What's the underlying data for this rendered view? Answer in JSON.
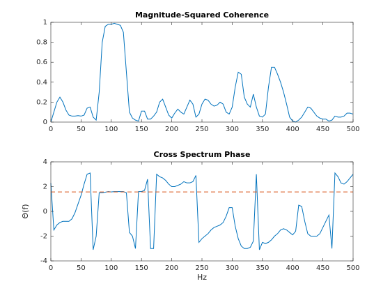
{
  "chart_data": [
    {
      "type": "line",
      "title": "Magnitude-Squared Coherence",
      "x": [
        0,
        5,
        10,
        15,
        20,
        25,
        30,
        35,
        40,
        45,
        50,
        55,
        60,
        65,
        70,
        75,
        80,
        85,
        90,
        95,
        100,
        105,
        110,
        115,
        120,
        125,
        130,
        135,
        140,
        145,
        150,
        155,
        160,
        165,
        170,
        175,
        180,
        185,
        190,
        195,
        200,
        205,
        210,
        215,
        220,
        225,
        230,
        235,
        240,
        245,
        250,
        255,
        260,
        265,
        270,
        275,
        280,
        285,
        290,
        295,
        300,
        305,
        310,
        315,
        320,
        325,
        330,
        335,
        340,
        345,
        350,
        355,
        360,
        365,
        370,
        375,
        380,
        385,
        390,
        395,
        400,
        405,
        410,
        415,
        420,
        425,
        430,
        435,
        440,
        445,
        450,
        455,
        460,
        465,
        470,
        475,
        480,
        485,
        490,
        495,
        500
      ],
      "series": [
        {
          "color": "#0072bd",
          "values": [
            0,
            0.1,
            0.2,
            0.25,
            0.2,
            0.12,
            0.07,
            0.06,
            0.06,
            0.065,
            0.06,
            0.07,
            0.14,
            0.15,
            0.05,
            0.02,
            0.3,
            0.8,
            0.96,
            0.98,
            0.98,
            0.99,
            0.98,
            0.97,
            0.9,
            0.5,
            0.1,
            0.04,
            0.02,
            0.01,
            0.11,
            0.11,
            0.03,
            0.03,
            0.06,
            0.1,
            0.2,
            0.23,
            0.15,
            0.07,
            0.04,
            0.09,
            0.13,
            0.1,
            0.08,
            0.15,
            0.22,
            0.18,
            0.05,
            0.08,
            0.18,
            0.23,
            0.22,
            0.18,
            0.16,
            0.17,
            0.2,
            0.18,
            0.1,
            0.08,
            0.15,
            0.35,
            0.5,
            0.48,
            0.25,
            0.18,
            0.15,
            0.28,
            0.15,
            0.06,
            0.05,
            0.08,
            0.35,
            0.55,
            0.55,
            0.48,
            0.4,
            0.3,
            0.18,
            0.05,
            0.01,
            0,
            0.02,
            0.05,
            0.1,
            0.15,
            0.14,
            0.1,
            0.06,
            0.04,
            0.03,
            0.03,
            0.01,
            0.02,
            0.06,
            0.05,
            0.05,
            0.06,
            0.09,
            0.09,
            0.08
          ]
        }
      ],
      "xlim": [
        0,
        500
      ],
      "xticks": [
        0,
        50,
        100,
        150,
        200,
        250,
        300,
        350,
        400,
        450,
        500
      ],
      "ylim": [
        0,
        1
      ],
      "yticks": [
        0,
        0.2,
        0.4,
        0.6,
        0.8,
        1
      ]
    },
    {
      "type": "line",
      "title": "Cross Spectrum Phase",
      "xlabel": "Hz",
      "ylabel": "Θ(f)",
      "x": [
        0,
        5,
        10,
        15,
        20,
        25,
        30,
        35,
        40,
        45,
        50,
        55,
        60,
        65,
        70,
        75,
        80,
        85,
        90,
        95,
        100,
        105,
        110,
        115,
        120,
        125,
        130,
        135,
        140,
        145,
        150,
        155,
        160,
        165,
        170,
        175,
        180,
        185,
        190,
        195,
        200,
        205,
        210,
        215,
        220,
        225,
        230,
        235,
        240,
        245,
        250,
        255,
        260,
        265,
        270,
        275,
        280,
        285,
        290,
        295,
        300,
        305,
        310,
        315,
        320,
        325,
        330,
        335,
        340,
        345,
        350,
        355,
        360,
        365,
        370,
        375,
        380,
        385,
        390,
        395,
        400,
        405,
        410,
        415,
        420,
        425,
        430,
        435,
        440,
        445,
        450,
        455,
        460,
        465,
        470,
        475,
        480,
        485,
        490,
        495,
        500
      ],
      "series": [
        {
          "color": "#0072bd",
          "values": [
            2.3,
            -1.5,
            -1.1,
            -0.9,
            -0.8,
            -0.8,
            -0.8,
            -0.6,
            -0.1,
            0.6,
            1.3,
            2.2,
            3.0,
            3.1,
            -3.1,
            -2.0,
            1.5,
            1.5,
            1.55,
            1.6,
            1.57,
            1.6,
            1.6,
            1.6,
            1.6,
            1.5,
            -1.7,
            -2.0,
            -3.0,
            1.6,
            1.6,
            1.7,
            2.6,
            -3.0,
            -3.0,
            3.0,
            2.8,
            2.7,
            2.5,
            2.2,
            2.0,
            2.0,
            2.1,
            2.2,
            2.4,
            2.3,
            2.3,
            2.4,
            2.9,
            -2.5,
            -2.2,
            -2.0,
            -1.8,
            -1.5,
            -1.3,
            -1.2,
            -1.1,
            -0.9,
            -0.4,
            0.3,
            0.3,
            -1.2,
            -2.2,
            -2.8,
            -3.0,
            -3.0,
            -2.9,
            -2.4,
            3.0,
            -3.1,
            -2.5,
            -2.6,
            -2.5,
            -2.3,
            -2.0,
            -1.8,
            -1.5,
            -1.4,
            -1.5,
            -1.7,
            -1.9,
            -1.6,
            0.5,
            0.4,
            -0.8,
            -1.8,
            -2.0,
            -2.0,
            -2.0,
            -1.8,
            -1.3,
            -0.8,
            -0.3,
            -3.0,
            3.1,
            2.8,
            2.3,
            2.2,
            2.4,
            2.7,
            3.0
          ]
        },
        {
          "color": "#d95319",
          "dashed": true,
          "x": [
            0,
            500
          ],
          "values": [
            1.57,
            1.57
          ]
        }
      ],
      "xlim": [
        0,
        500
      ],
      "xticks": [
        0,
        50,
        100,
        150,
        200,
        250,
        300,
        350,
        400,
        450,
        500
      ],
      "ylim": [
        -4,
        4
      ],
      "yticks": [
        -4,
        -2,
        0,
        2,
        4
      ]
    }
  ]
}
